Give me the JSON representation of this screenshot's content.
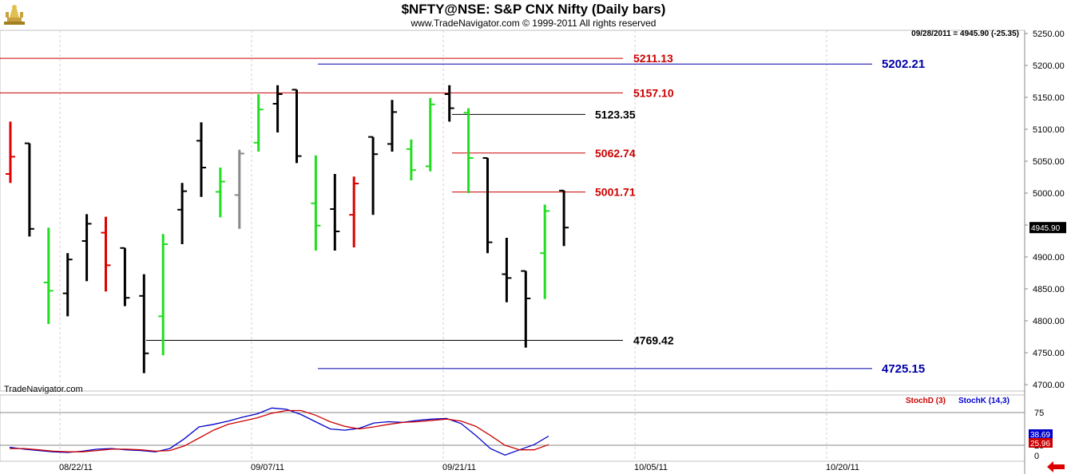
{
  "header": {
    "title": "$NFTY@NSE:  S&P CNX Nifty  (Daily bars)",
    "copyright": "www.TradeNavigator.com © 1999-2011 All rights reserved",
    "readout": "09/28/2011 = 4945.90 (-25.35)",
    "logo_icon": "trophy-logo-icon"
  },
  "watermark": "TradeNavigator.com",
  "indicator_labels": {
    "stochd": "StochD (3)",
    "stochk": "StochK (14,3)"
  },
  "colors": {
    "up_bar": "#22dd22",
    "down_bar": "#dd0000",
    "neutral_bar": "#000000",
    "gray_bar": "#888888",
    "red_level": "#cc0000",
    "blue_level": "#0000aa",
    "stochk": "#0000cc",
    "stochd": "#cc0000"
  },
  "chart_data": [
    {
      "type": "ohlc",
      "title": "$NFTY@NSE:  S&P CNX Nifty  (Daily bars)",
      "ylim": [
        4700,
        5250
      ],
      "y_ticks": [
        "5250.00",
        "5200.00",
        "5150.00",
        "5100.00",
        "5050.00",
        "5000.00",
        "4950.00",
        "4900.00",
        "4850.00",
        "4800.00",
        "4750.00",
        "4700.00"
      ],
      "x_tick_labels": [
        "08/22/11",
        "09/07/11",
        "09/21/11",
        "10/05/11",
        "10/20/11"
      ],
      "last_price_label": "4945.90",
      "bars": [
        {
          "o": 5030,
          "h": 5112,
          "l": 5016,
          "c": 5057,
          "color": "red"
        },
        {
          "o": 5078,
          "h": 5078,
          "l": 4932,
          "c": 4944,
          "color": "black"
        },
        {
          "o": 4860,
          "h": 4946,
          "l": 4795,
          "c": 4847,
          "color": "green"
        },
        {
          "o": 4843,
          "h": 4906,
          "l": 4807,
          "c": 4896,
          "color": "black"
        },
        {
          "o": 4925,
          "h": 4967,
          "l": 4862,
          "c": 4952,
          "color": "black"
        },
        {
          "o": 4938,
          "h": 4963,
          "l": 4846,
          "c": 4887,
          "color": "red"
        },
        {
          "o": 4914,
          "h": 4914,
          "l": 4823,
          "c": 4836,
          "color": "black"
        },
        {
          "o": 4839,
          "h": 4873,
          "l": 4718,
          "c": 4749,
          "color": "black"
        },
        {
          "o": 4807,
          "h": 4936,
          "l": 4746,
          "c": 4920,
          "color": "green"
        },
        {
          "o": 4974,
          "h": 5016,
          "l": 4920,
          "c": 5003,
          "color": "black"
        },
        {
          "o": 5082,
          "h": 5111,
          "l": 4994,
          "c": 5040,
          "color": "black"
        },
        {
          "o": 5002,
          "h": 5040,
          "l": 4962,
          "c": 5018,
          "color": "green"
        },
        {
          "o": 4997,
          "h": 5068,
          "l": 4944,
          "c": 5062,
          "color": "gray"
        },
        {
          "o": 5079,
          "h": 5155,
          "l": 5065,
          "c": 5131,
          "color": "green"
        },
        {
          "o": 5140,
          "h": 5169,
          "l": 5095,
          "c": 5155,
          "color": "black"
        },
        {
          "o": 5162,
          "h": 5162,
          "l": 5047,
          "c": 5058,
          "color": "black"
        },
        {
          "o": 4984,
          "h": 5059,
          "l": 4910,
          "c": 4949,
          "color": "green"
        },
        {
          "o": 4975,
          "h": 5030,
          "l": 4910,
          "c": 4940,
          "color": "black"
        },
        {
          "o": 4966,
          "h": 5026,
          "l": 4915,
          "c": 5015,
          "color": "red"
        },
        {
          "o": 5088,
          "h": 5088,
          "l": 4966,
          "c": 5061,
          "color": "black"
        },
        {
          "o": 5077,
          "h": 5146,
          "l": 5065,
          "c": 5127,
          "color": "black"
        },
        {
          "o": 5069,
          "h": 5084,
          "l": 5020,
          "c": 5036,
          "color": "green"
        },
        {
          "o": 5042,
          "h": 5149,
          "l": 5034,
          "c": 5139,
          "color": "green"
        },
        {
          "o": 5155,
          "h": 5169,
          "l": 5112,
          "c": 5133,
          "color": "black"
        },
        {
          "o": 5126,
          "h": 5133,
          "l": 5000,
          "c": 5055,
          "color": "green"
        },
        {
          "o": 5055,
          "h": 5055,
          "l": 4906,
          "c": 4923,
          "color": "black"
        },
        {
          "o": 4873,
          "h": 4930,
          "l": 4829,
          "c": 4867,
          "color": "black"
        },
        {
          "o": 4878,
          "h": 4878,
          "l": 4758,
          "c": 4835,
          "color": "black"
        },
        {
          "o": 4906,
          "h": 4982,
          "l": 4834,
          "c": 4972,
          "color": "green"
        },
        {
          "o": 5004,
          "h": 5004,
          "l": 4917,
          "c": 4946,
          "color": "black"
        }
      ],
      "levels": [
        {
          "value": 5211.13,
          "label": "5211.13",
          "color": "red"
        },
        {
          "value": 5202.21,
          "label": "5202.21",
          "color": "blue"
        },
        {
          "value": 5157.1,
          "label": "5157.10",
          "color": "red"
        },
        {
          "value": 5123.35,
          "label": "5123.35",
          "color": "black"
        },
        {
          "value": 5062.74,
          "label": "5062.74",
          "color": "red"
        },
        {
          "value": 5001.71,
          "label": "5001.71",
          "color": "red"
        },
        {
          "value": 4769.42,
          "label": "4769.42",
          "color": "black"
        },
        {
          "value": 4725.15,
          "label": "4725.15",
          "color": "blue"
        }
      ]
    },
    {
      "type": "line",
      "title": "",
      "ylim": [
        0,
        100
      ],
      "y_ticks": [
        "75",
        "25",
        "0"
      ],
      "reference_lines": [
        75,
        25
      ],
      "series": [
        {
          "name": "StochK (14,3)",
          "color": "blue",
          "last_label": "38.69",
          "values": [
            22,
            19,
            17,
            15,
            14,
            16,
            19,
            20,
            18,
            17,
            15,
            20,
            35,
            53,
            57,
            62,
            68,
            73,
            82,
            80,
            72,
            61,
            50,
            48,
            51,
            59,
            61,
            60,
            63,
            65,
            66,
            58,
            40,
            20,
            10,
            18,
            26,
            39
          ]
        },
        {
          "name": "StochD (3)",
          "color": "red",
          "last_label": "25.96",
          "values": [
            20,
            20,
            18,
            16,
            15,
            15,
            17,
            19,
            19,
            18,
            16,
            17,
            24,
            36,
            48,
            57,
            62,
            67,
            74,
            78,
            78,
            71,
            61,
            54,
            50,
            53,
            57,
            60,
            61,
            63,
            65,
            62,
            54,
            40,
            25,
            18,
            18,
            26
          ]
        }
      ]
    }
  ]
}
